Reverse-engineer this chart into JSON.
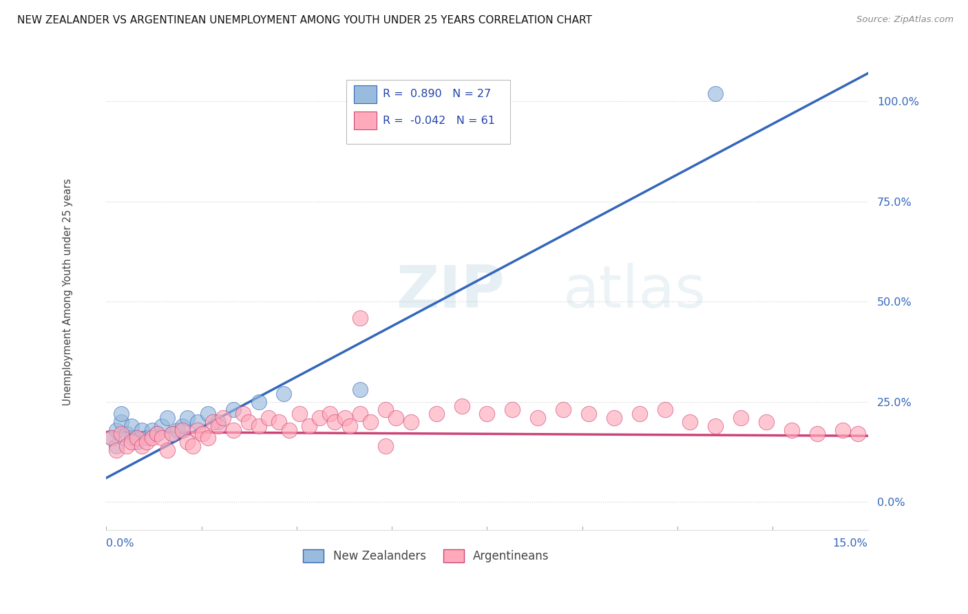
{
  "title": "NEW ZEALANDER VS ARGENTINEAN UNEMPLOYMENT AMONG YOUTH UNDER 25 YEARS CORRELATION CHART",
  "source": "Source: ZipAtlas.com",
  "ylabel": "Unemployment Among Youth under 25 years",
  "xmin": 0.0,
  "xmax": 0.15,
  "ymin": -0.07,
  "ymax": 1.12,
  "yticks_right": [
    0.0,
    0.25,
    0.5,
    0.75,
    1.0
  ],
  "ytick_labels_right": [
    "0.0%",
    "25.0%",
    "50.0%",
    "75.0%",
    "100.0%"
  ],
  "blue_R": 0.89,
  "blue_N": 27,
  "pink_R": -0.042,
  "pink_N": 61,
  "blue_color": "#99BBDD",
  "pink_color": "#FFAABB",
  "blue_line_color": "#3366BB",
  "pink_line_color": "#CC4477",
  "background_color": "#FFFFFF",
  "grid_color": "#CCCCCC",
  "blue_x": [
    0.001,
    0.002,
    0.002,
    0.003,
    0.003,
    0.004,
    0.005,
    0.005,
    0.006,
    0.007,
    0.008,
    0.009,
    0.01,
    0.011,
    0.012,
    0.013,
    0.014,
    0.015,
    0.016,
    0.018,
    0.02,
    0.022,
    0.025,
    0.03,
    0.035,
    0.05,
    0.12
  ],
  "blue_y": [
    0.16,
    0.14,
    0.18,
    0.2,
    0.22,
    0.17,
    0.16,
    0.19,
    0.15,
    0.18,
    0.16,
    0.18,
    0.17,
    0.19,
    0.21,
    0.17,
    0.18,
    0.19,
    0.21,
    0.2,
    0.22,
    0.2,
    0.23,
    0.25,
    0.27,
    0.28,
    1.02
  ],
  "pink_x": [
    0.001,
    0.002,
    0.003,
    0.004,
    0.005,
    0.006,
    0.007,
    0.008,
    0.009,
    0.01,
    0.011,
    0.012,
    0.013,
    0.015,
    0.016,
    0.017,
    0.018,
    0.019,
    0.02,
    0.021,
    0.022,
    0.023,
    0.025,
    0.027,
    0.028,
    0.03,
    0.032,
    0.034,
    0.036,
    0.038,
    0.04,
    0.042,
    0.044,
    0.045,
    0.047,
    0.048,
    0.05,
    0.052,
    0.055,
    0.057,
    0.06,
    0.065,
    0.07,
    0.075,
    0.08,
    0.085,
    0.09,
    0.095,
    0.1,
    0.105,
    0.11,
    0.115,
    0.12,
    0.125,
    0.13,
    0.135,
    0.14,
    0.145,
    0.148,
    0.05,
    0.055
  ],
  "pink_y": [
    0.16,
    0.13,
    0.17,
    0.14,
    0.15,
    0.16,
    0.14,
    0.15,
    0.16,
    0.17,
    0.16,
    0.13,
    0.17,
    0.18,
    0.15,
    0.14,
    0.18,
    0.17,
    0.16,
    0.2,
    0.19,
    0.21,
    0.18,
    0.22,
    0.2,
    0.19,
    0.21,
    0.2,
    0.18,
    0.22,
    0.19,
    0.21,
    0.22,
    0.2,
    0.21,
    0.19,
    0.22,
    0.2,
    0.23,
    0.21,
    0.2,
    0.22,
    0.24,
    0.22,
    0.23,
    0.21,
    0.23,
    0.22,
    0.21,
    0.22,
    0.23,
    0.2,
    0.19,
    0.21,
    0.2,
    0.18,
    0.17,
    0.18,
    0.17,
    0.46,
    0.14
  ],
  "blue_line_x0": 0.0,
  "blue_line_y0": 0.06,
  "blue_line_x1": 0.15,
  "blue_line_y1": 1.07,
  "pink_line_x0": 0.0,
  "pink_line_y0": 0.175,
  "pink_line_x1": 0.15,
  "pink_line_y1": 0.165
}
